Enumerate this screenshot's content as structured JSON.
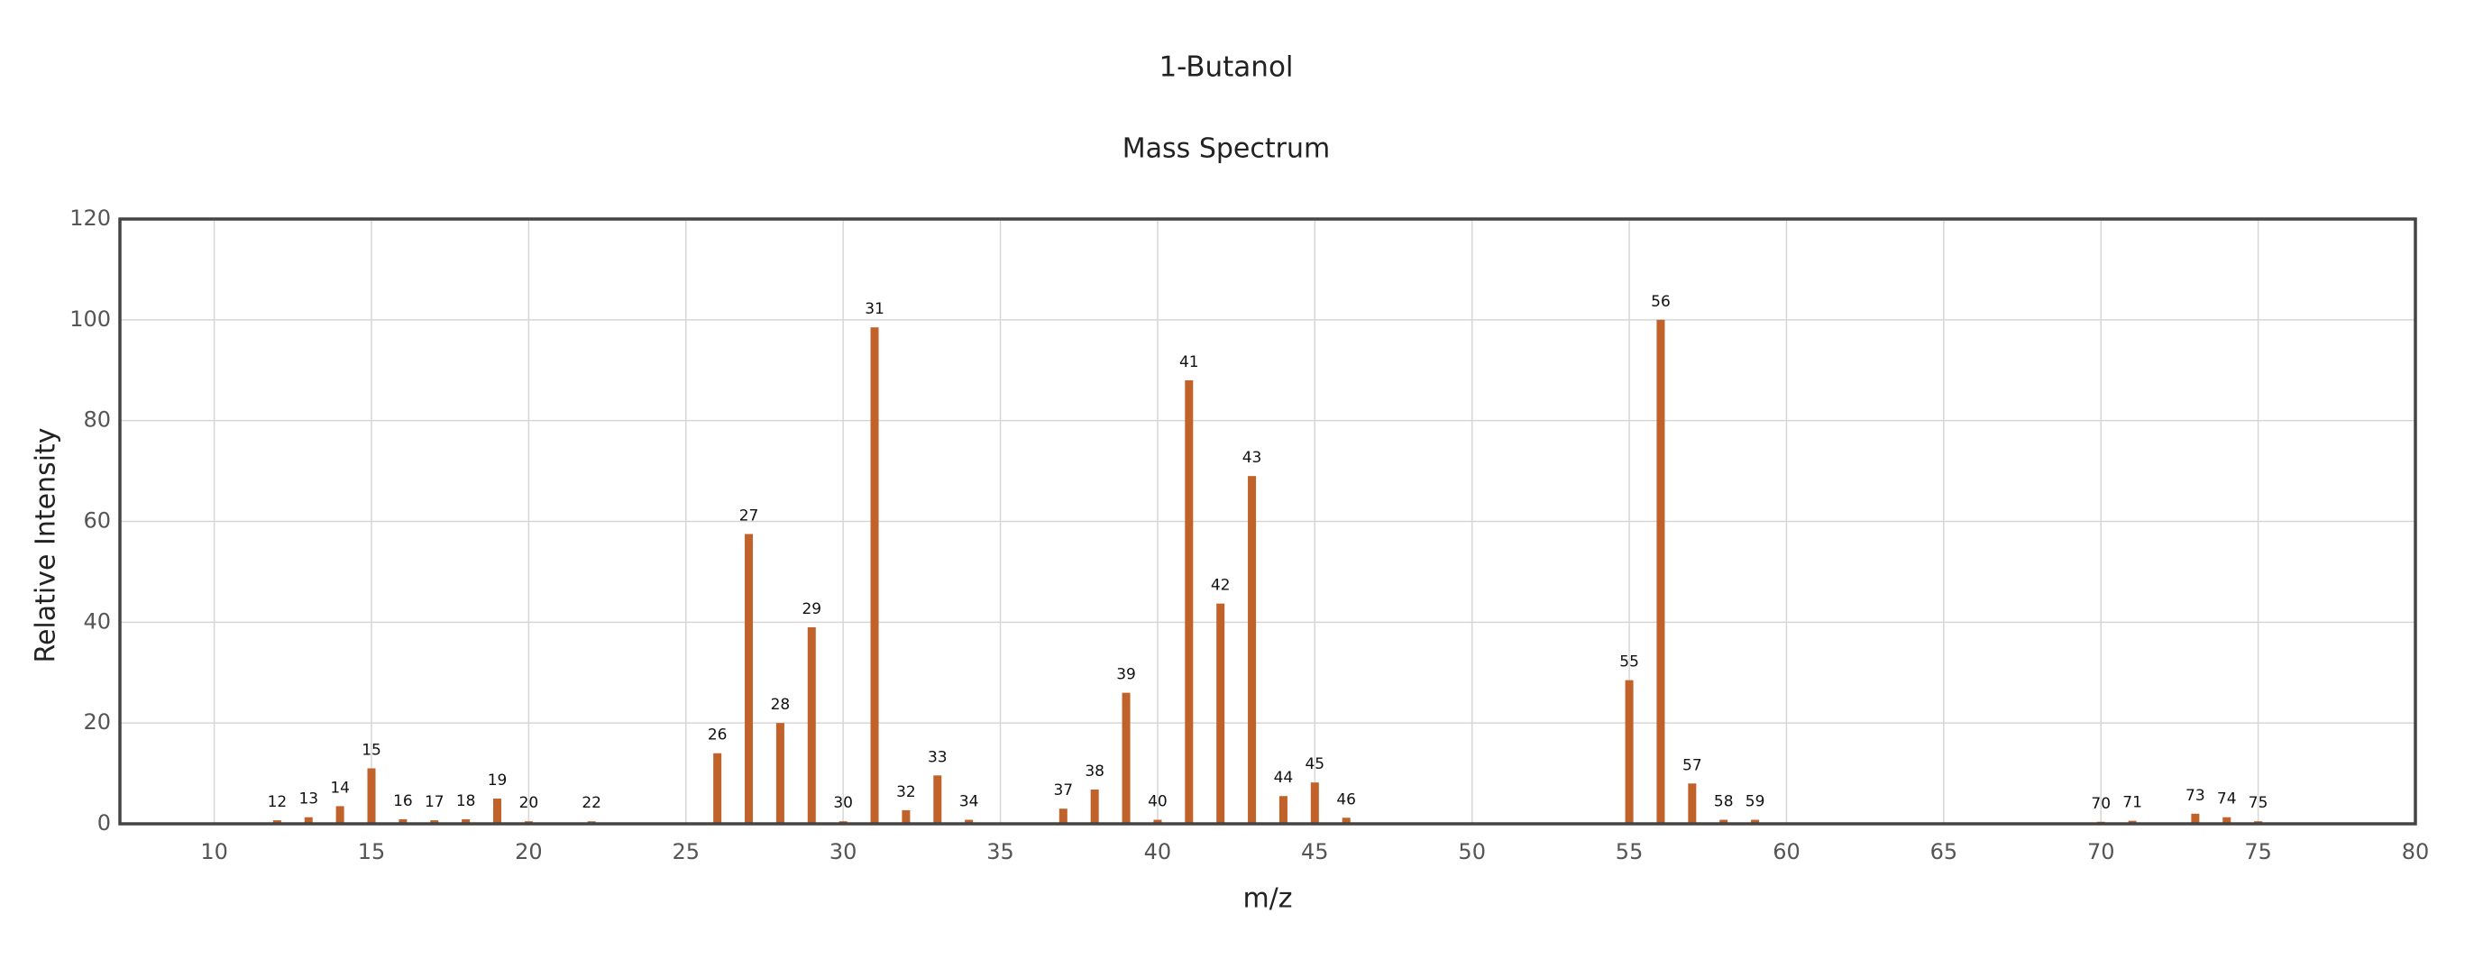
{
  "chart_data": {
    "type": "bar",
    "title": "1-Butanol",
    "subtitle": "Mass Spectrum",
    "x_label": "m/z",
    "y_label": "Relative Intensity",
    "x": [
      12,
      13,
      14,
      15,
      16,
      17,
      18,
      19,
      20,
      22,
      26,
      27,
      28,
      29,
      30,
      31,
      32,
      33,
      34,
      37,
      38,
      39,
      40,
      41,
      42,
      43,
      44,
      45,
      46,
      55,
      56,
      57,
      58,
      59,
      70,
      71,
      73,
      74,
      75
    ],
    "values": [
      0.7,
      1.3,
      3.5,
      11,
      0.9,
      0.7,
      0.9,
      5,
      0.5,
      0.5,
      14,
      57.5,
      20,
      39,
      0.5,
      98.5,
      2.7,
      9.6,
      0.8,
      3,
      6.8,
      26,
      0.8,
      88,
      43.7,
      69,
      5.5,
      8.2,
      1.2,
      28.5,
      100,
      8,
      0.8,
      0.8,
      0.4,
      0.6,
      2,
      1.3,
      0.5
    ],
    "color": "#c0622a",
    "xlim": [
      7,
      80
    ],
    "xticks": [
      10,
      15,
      20,
      25,
      30,
      35,
      40,
      45,
      50,
      55,
      60,
      65,
      70,
      75,
      80
    ],
    "ylim": [
      0,
      120
    ],
    "yticks": [
      0,
      20,
      40,
      60,
      80,
      100,
      120
    ],
    "grid": true
  }
}
